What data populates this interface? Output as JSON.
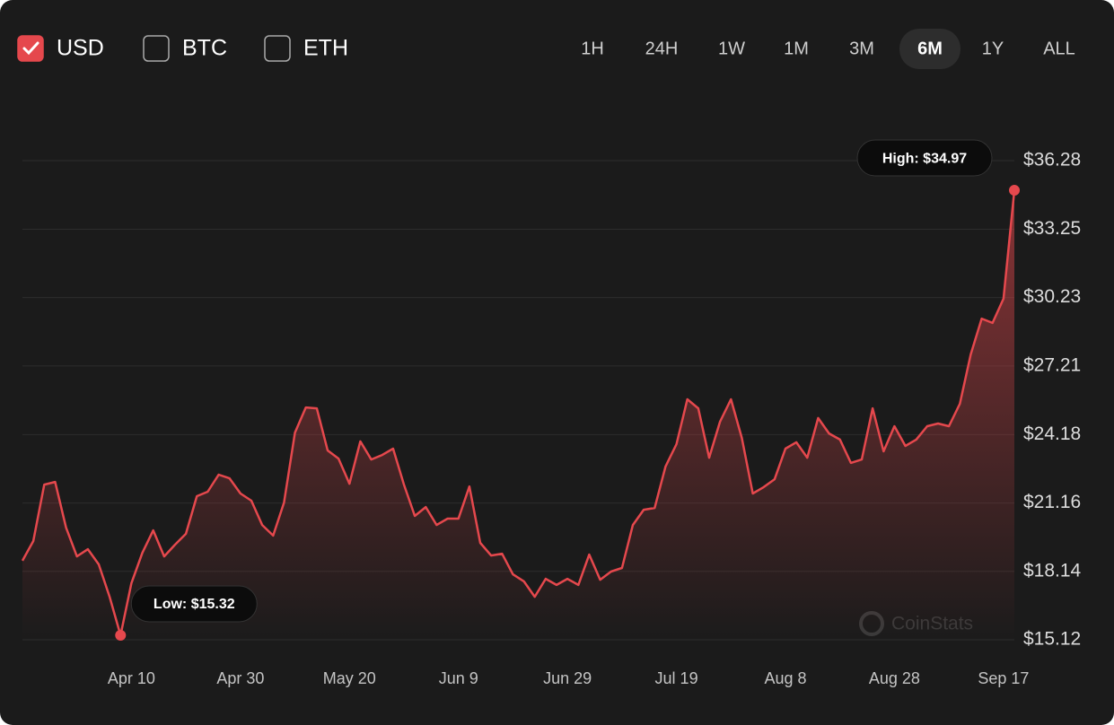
{
  "currencies": [
    {
      "label": "USD",
      "checked": true
    },
    {
      "label": "BTC",
      "checked": false
    },
    {
      "label": "ETH",
      "checked": false
    }
  ],
  "ranges": [
    {
      "label": "1H",
      "selected": false
    },
    {
      "label": "24H",
      "selected": false
    },
    {
      "label": "1W",
      "selected": false
    },
    {
      "label": "1M",
      "selected": false
    },
    {
      "label": "3M",
      "selected": false
    },
    {
      "label": "6M",
      "selected": true
    },
    {
      "label": "1Y",
      "selected": false
    },
    {
      "label": "ALL",
      "selected": false
    }
  ],
  "chart_data": {
    "type": "line",
    "color": "#e5484d",
    "grid": true,
    "watermark": "CoinStats",
    "annotations": {
      "high": "High: $34.97",
      "low": "Low: $15.32"
    },
    "categories": [
      null,
      null,
      null,
      null,
      null,
      null,
      null,
      null,
      null,
      null,
      "Apr 10",
      null,
      null,
      null,
      null,
      null,
      null,
      null,
      null,
      null,
      "Apr 30",
      null,
      null,
      null,
      null,
      null,
      null,
      null,
      null,
      null,
      "May 20",
      null,
      null,
      null,
      null,
      null,
      null,
      null,
      null,
      null,
      "Jun 9",
      null,
      null,
      null,
      null,
      null,
      null,
      null,
      null,
      null,
      "Jun 29",
      null,
      null,
      null,
      null,
      null,
      null,
      null,
      null,
      null,
      "Jul 19",
      null,
      null,
      null,
      null,
      null,
      null,
      null,
      null,
      null,
      "Aug 8",
      null,
      null,
      null,
      null,
      null,
      null,
      null,
      null,
      null,
      "Aug 28",
      null,
      null,
      null,
      null,
      null,
      null,
      null,
      null,
      null,
      "Sep 17",
      null
    ],
    "values": [
      18.61,
      19.48,
      21.97,
      22.09,
      20.07,
      18.8,
      19.12,
      18.45,
      17.02,
      15.32,
      17.62,
      18.96,
      19.95,
      18.8,
      19.32,
      19.8,
      21.46,
      21.66,
      22.41,
      22.25,
      21.58,
      21.26,
      20.19,
      19.72,
      21.18,
      24.27,
      25.38,
      25.34,
      23.48,
      23.12,
      22.01,
      23.88,
      23.08,
      23.28,
      23.56,
      21.97,
      20.59,
      20.98,
      20.19,
      20.47,
      20.47,
      21.89,
      19.4,
      18.84,
      18.92,
      18.01,
      17.7,
      17.02,
      17.81,
      17.54,
      17.81,
      17.54,
      18.88,
      17.77,
      18.13,
      18.29,
      20.19,
      20.86,
      20.94,
      22.77,
      23.76,
      25.74,
      25.34,
      23.16,
      24.75,
      25.74,
      24.03,
      21.58,
      21.86,
      22.21,
      23.56,
      23.84,
      23.16,
      24.91,
      24.23,
      23.96,
      22.93,
      23.08,
      25.34,
      23.44,
      24.55,
      23.68,
      23.96,
      24.55,
      24.67,
      24.55,
      25.54,
      27.72,
      29.3,
      29.11,
      30.18,
      34.97
    ],
    "ylim": [
      15.12,
      36.28
    ],
    "yticks": [
      {
        "value": 15.12,
        "label": "$15.12"
      },
      {
        "value": 18.14,
        "label": "$18.14"
      },
      {
        "value": 21.16,
        "label": "$21.16"
      },
      {
        "value": 24.18,
        "label": "$24.18"
      },
      {
        "value": 27.21,
        "label": "$27.21"
      },
      {
        "value": 30.23,
        "label": "$30.23"
      },
      {
        "value": 33.25,
        "label": "$33.25"
      },
      {
        "value": 36.28,
        "label": "$36.28"
      }
    ]
  }
}
